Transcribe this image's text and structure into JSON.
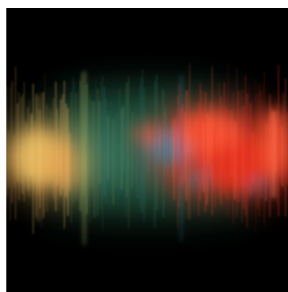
{
  "image": {
    "subject": "abstract-spectral-streaks",
    "colors": {
      "background": "#000000",
      "frame": "#ffffff",
      "dark_green": "#1d4a36",
      "teal": "#2f7a6a",
      "olive": "#6f8a4a",
      "orange": "#e8a050",
      "yellow": "#f2c56a",
      "red": "#e8311e",
      "light_red": "#ff5a3a",
      "blue": "#4c8bb4"
    }
  }
}
